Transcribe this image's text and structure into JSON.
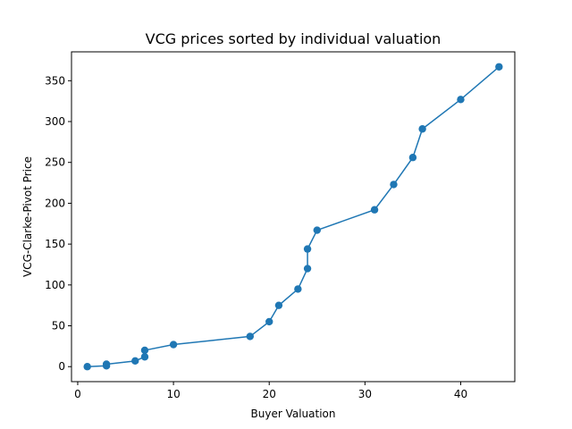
{
  "chart_data": {
    "type": "line",
    "title": "VCG prices sorted by individual valuation",
    "xlabel": "Buyer Valuation",
    "ylabel": "VCG-Clarke-Pivot Price",
    "xlim": [
      -0.65,
      45.65
    ],
    "ylim": [
      -18.35,
      385.35
    ],
    "xticks": [
      0,
      10,
      20,
      30,
      40
    ],
    "yticks": [
      0,
      50,
      100,
      150,
      200,
      250,
      300,
      350
    ],
    "grid": false,
    "marker": "circle",
    "color": "#1f77b4",
    "series": [
      {
        "x": [
          1,
          3,
          3,
          6,
          7,
          7,
          10,
          18,
          20,
          21,
          23,
          24,
          24,
          25,
          31,
          33,
          35,
          36,
          40,
          44
        ],
        "y": [
          0,
          1,
          3,
          7,
          12,
          20,
          27,
          37,
          55,
          75,
          95,
          120,
          144,
          167,
          192,
          223,
          256,
          291,
          327,
          367
        ]
      }
    ]
  }
}
